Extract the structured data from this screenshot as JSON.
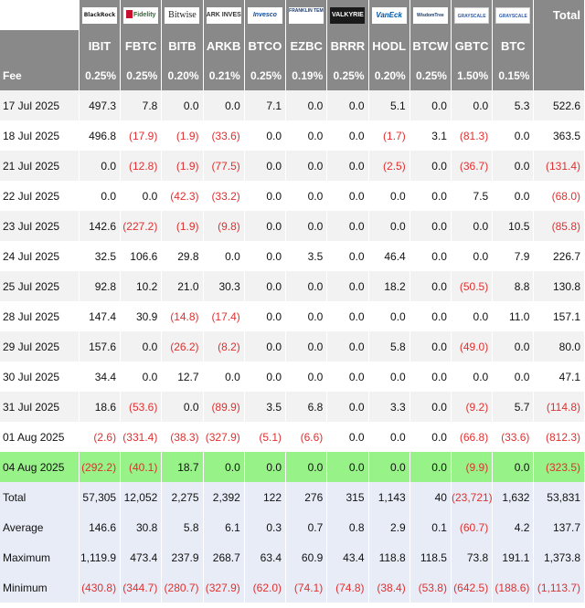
{
  "header": {
    "total_label": "Total",
    "fee_label": "Fee",
    "funds": [
      {
        "logo": "BlackRock",
        "ticker": "IBIT",
        "fee": "0.25%"
      },
      {
        "logo": "Fidelity",
        "ticker": "FBTC",
        "fee": "0.25%"
      },
      {
        "logo": "Bitwise",
        "ticker": "BITB",
        "fee": "0.20%"
      },
      {
        "logo": "ARK INVEST",
        "ticker": "ARKB",
        "fee": "0.21%"
      },
      {
        "logo": "Invesco",
        "ticker": "BTCO",
        "fee": "0.25%"
      },
      {
        "logo": "FRANKLIN TEMPLETON",
        "ticker": "EZBC",
        "fee": "0.19%"
      },
      {
        "logo": "VALKYRIE",
        "ticker": "BRRR",
        "fee": "0.25%"
      },
      {
        "logo": "VanEck",
        "ticker": "HODL",
        "fee": "0.20%"
      },
      {
        "logo": "WisdomTree",
        "ticker": "BTCW",
        "fee": "0.25%"
      },
      {
        "logo": "GRAYSCALE",
        "ticker": "GBTC",
        "fee": "1.50%"
      },
      {
        "logo": "GRAYSCALE",
        "ticker": "BTC",
        "fee": "0.15%"
      }
    ]
  },
  "rows": [
    {
      "date": "17 Jul 2025",
      "values": [
        "497.3",
        "7.8",
        "0.0",
        "0.0",
        "7.1",
        "0.0",
        "0.0",
        "5.1",
        "0.0",
        "0.0",
        "5.3"
      ],
      "total": "522.6"
    },
    {
      "date": "18 Jul 2025",
      "values": [
        "496.8",
        "(17.9)",
        "(1.9)",
        "(33.6)",
        "0.0",
        "0.0",
        "0.0",
        "(1.7)",
        "3.1",
        "(81.3)",
        "0.0"
      ],
      "total": "363.5"
    },
    {
      "date": "21 Jul 2025",
      "values": [
        "0.0",
        "(12.8)",
        "(1.9)",
        "(77.5)",
        "0.0",
        "0.0",
        "0.0",
        "(2.5)",
        "0.0",
        "(36.7)",
        "0.0"
      ],
      "total": "(131.4)"
    },
    {
      "date": "22 Jul 2025",
      "values": [
        "0.0",
        "0.0",
        "(42.3)",
        "(33.2)",
        "0.0",
        "0.0",
        "0.0",
        "0.0",
        "0.0",
        "7.5",
        "0.0"
      ],
      "total": "(68.0)"
    },
    {
      "date": "23 Jul 2025",
      "values": [
        "142.6",
        "(227.2)",
        "(1.9)",
        "(9.8)",
        "0.0",
        "0.0",
        "0.0",
        "0.0",
        "0.0",
        "0.0",
        "10.5"
      ],
      "total": "(85.8)"
    },
    {
      "date": "24 Jul 2025",
      "values": [
        "32.5",
        "106.6",
        "29.8",
        "0.0",
        "0.0",
        "3.5",
        "0.0",
        "46.4",
        "0.0",
        "0.0",
        "7.9"
      ],
      "total": "226.7"
    },
    {
      "date": "25 Jul 2025",
      "values": [
        "92.8",
        "10.2",
        "21.0",
        "30.3",
        "0.0",
        "0.0",
        "0.0",
        "18.2",
        "0.0",
        "(50.5)",
        "8.8"
      ],
      "total": "130.8"
    },
    {
      "date": "28 Jul 2025",
      "values": [
        "147.4",
        "30.9",
        "(14.8)",
        "(17.4)",
        "0.0",
        "0.0",
        "0.0",
        "0.0",
        "0.0",
        "0.0",
        "11.0"
      ],
      "total": "157.1"
    },
    {
      "date": "29 Jul 2025",
      "values": [
        "157.6",
        "0.0",
        "(26.2)",
        "(8.2)",
        "0.0",
        "0.0",
        "0.0",
        "5.8",
        "0.0",
        "(49.0)",
        "0.0"
      ],
      "total": "80.0"
    },
    {
      "date": "30 Jul 2025",
      "values": [
        "34.4",
        "0.0",
        "12.7",
        "0.0",
        "0.0",
        "0.0",
        "0.0",
        "0.0",
        "0.0",
        "0.0",
        "0.0"
      ],
      "total": "47.1"
    },
    {
      "date": "31 Jul 2025",
      "values": [
        "18.6",
        "(53.6)",
        "0.0",
        "(89.9)",
        "3.5",
        "6.8",
        "0.0",
        "3.3",
        "0.0",
        "(9.2)",
        "5.7"
      ],
      "total": "(114.8)"
    },
    {
      "date": "01 Aug 2025",
      "values": [
        "(2.6)",
        "(331.4)",
        "(38.3)",
        "(327.9)",
        "(5.1)",
        "(6.6)",
        "0.0",
        "0.0",
        "0.0",
        "(66.8)",
        "(33.6)"
      ],
      "total": "(812.3)"
    },
    {
      "date": "04 Aug 2025",
      "values": [
        "(292.2)",
        "(40.1)",
        "18.7",
        "0.0",
        "0.0",
        "0.0",
        "0.0",
        "0.0",
        "0.0",
        "(9.9)",
        "0.0"
      ],
      "total": "(323.5)",
      "highlight": true
    }
  ],
  "stats": [
    {
      "label": "Total",
      "values": [
        "57,305",
        "12,052",
        "2,275",
        "2,392",
        "122",
        "276",
        "315",
        "1,143",
        "40",
        "(23,721)",
        "1,632"
      ],
      "total": "53,831"
    },
    {
      "label": "Average",
      "values": [
        "146.6",
        "30.8",
        "5.8",
        "6.1",
        "0.3",
        "0.7",
        "0.8",
        "2.9",
        "0.1",
        "(60.7)",
        "4.2"
      ],
      "total": "137.7"
    },
    {
      "label": "Maximum",
      "values": [
        "1,119.9",
        "473.4",
        "237.9",
        "268.7",
        "63.4",
        "60.9",
        "43.4",
        "118.8",
        "118.5",
        "73.8",
        "191.1"
      ],
      "total": "1,373.8"
    },
    {
      "label": "Minimum",
      "values": [
        "(430.8)",
        "(344.7)",
        "(280.7)",
        "(327.9)",
        "(62.0)",
        "(74.1)",
        "(74.8)",
        "(38.4)",
        "(53.8)",
        "(642.5)",
        "(188.6)"
      ],
      "total": "(1,113.7)"
    }
  ],
  "colors": {
    "header_bg": "#898989",
    "negative": "#e03030",
    "highlight_row": "#97f287",
    "stats_bg": "#e8ecf6"
  }
}
